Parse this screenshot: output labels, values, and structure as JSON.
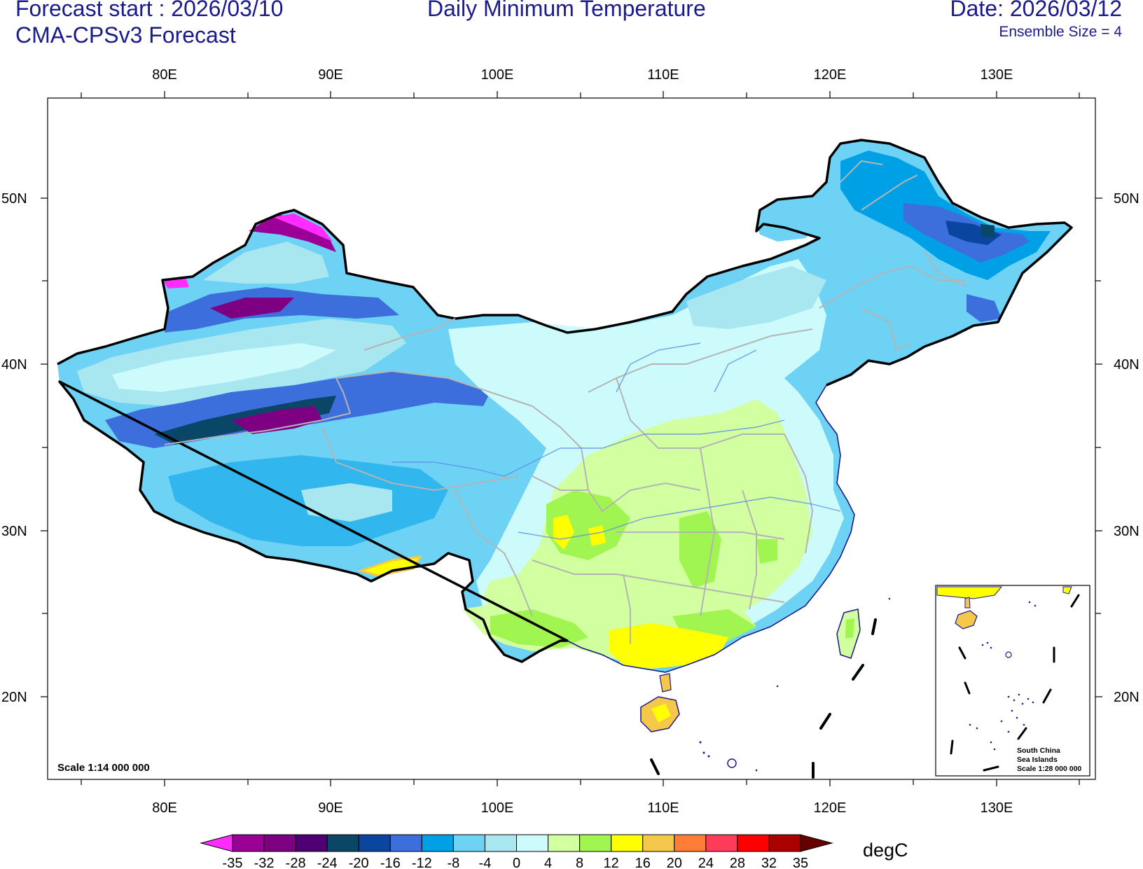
{
  "header": {
    "forecast_start": "Forecast start : 2026/03/10",
    "model": "CMA-CPSv3 Forecast",
    "title": "Daily Minimum Temperature",
    "date": "Date: 2026/03/12",
    "ensemble": "Ensemble Size = 4"
  },
  "map": {
    "lon_labels": [
      "80E",
      "90E",
      "100E",
      "110E",
      "120E",
      "130E"
    ],
    "lat_labels": [
      "50N",
      "40N",
      "30N",
      "20N"
    ],
    "scale_main": "Scale 1:14 000 000",
    "inset_lines": [
      "South China",
      "Sea Islands",
      "Scale 1:28 000 000"
    ]
  },
  "colorbar": {
    "unit": "degC",
    "ticks": [
      "-35",
      "-32",
      "-28",
      "-24",
      "-20",
      "-16",
      "-12",
      "-8",
      "-4",
      "0",
      "4",
      "8",
      "12",
      "16",
      "20",
      "24",
      "28",
      "32",
      "35"
    ],
    "colors": [
      "#ff2cff",
      "#9b0096",
      "#7e0082",
      "#4e0074",
      "#0a4666",
      "#0a46a0",
      "#3c6edc",
      "#00a0e6",
      "#6ed2f5",
      "#a8e6f0",
      "#cdfafa",
      "#d2ffa0",
      "#a0f550",
      "#ffff00",
      "#f5c84b",
      "#ff7d37",
      "#ff3c5a",
      "#ff0000",
      "#aa0000",
      "#640000"
    ]
  }
}
